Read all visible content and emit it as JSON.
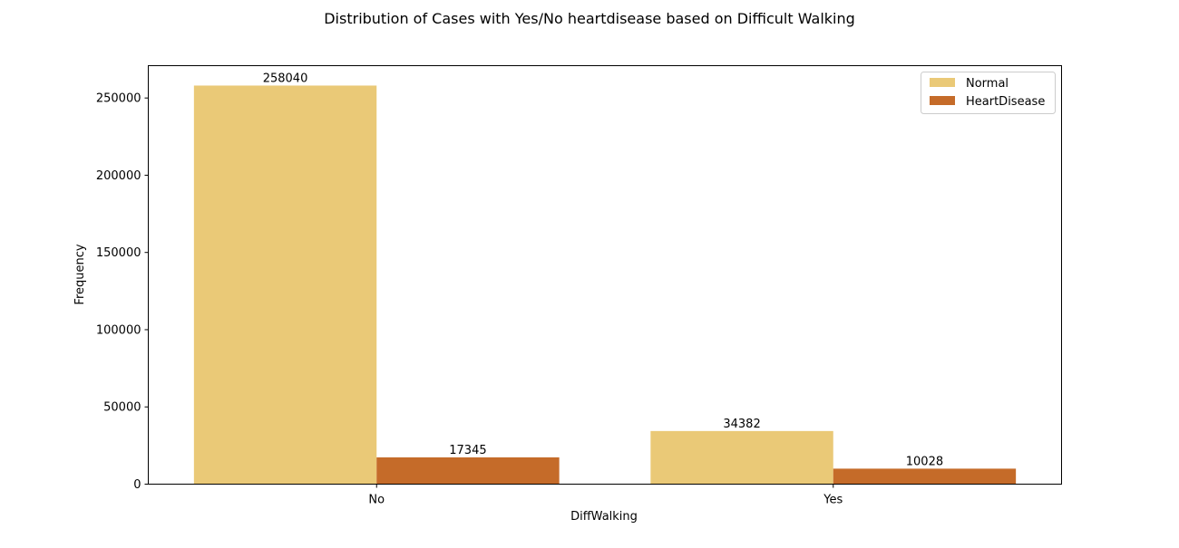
{
  "chart_data": {
    "type": "bar",
    "title": "Distribution of Cases with Yes/No heartdisease based on Difficult Walking",
    "xlabel": "DiffWalking",
    "ylabel": "Frequency",
    "categories": [
      "No",
      "Yes"
    ],
    "series": [
      {
        "name": "Normal",
        "values": [
          258040,
          34382
        ],
        "color": "#EAC977"
      },
      {
        "name": "HeartDisease",
        "values": [
          17345,
          10028
        ],
        "color": "#C56B29"
      }
    ],
    "ylim": [
      0,
      270922
    ],
    "yticks": [
      0,
      50000,
      100000,
      150000,
      200000,
      250000
    ],
    "ytick_labels": [
      "0",
      "50000",
      "100000",
      "150000",
      "200000",
      "250000"
    ],
    "data_labels": [
      [
        "258040",
        "34382"
      ],
      [
        "17345",
        "10028"
      ]
    ],
    "grid": false,
    "legend_position": "top-right"
  }
}
